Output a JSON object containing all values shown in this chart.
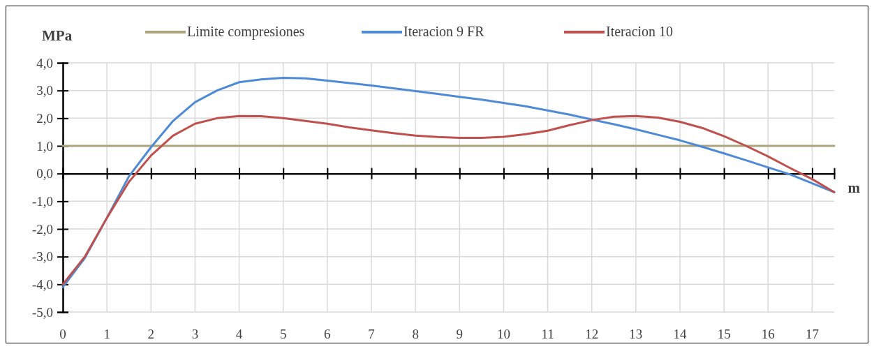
{
  "chart_data": {
    "type": "line",
    "xlabel": "m",
    "ylabel": "MPa",
    "xlim": [
      0,
      17.5
    ],
    "ylim": [
      -5,
      4
    ],
    "xticks": [
      0,
      1,
      2,
      3,
      4,
      5,
      6,
      7,
      8,
      9,
      10,
      11,
      12,
      13,
      14,
      15,
      16,
      17
    ],
    "yticks": [
      {
        "value": -5,
        "label": "-5,0"
      },
      {
        "value": -4,
        "label": "-4,0"
      },
      {
        "value": -3,
        "label": "-3,0"
      },
      {
        "value": -2,
        "label": "-2,0"
      },
      {
        "value": -1,
        "label": "-1,0"
      },
      {
        "value": 0,
        "label": "0,0"
      },
      {
        "value": 1,
        "label": "1,0"
      },
      {
        "value": 2,
        "label": "2,0"
      },
      {
        "value": 3,
        "label": "3,0"
      },
      {
        "value": 4,
        "label": "4,0"
      }
    ],
    "grid": true,
    "legend": "top",
    "marker": "none",
    "line_style": "solid",
    "series": [
      {
        "name": "Limite compresiones",
        "color": "#aca47c",
        "x": [
          0,
          17.5
        ],
        "values": [
          1,
          1
        ]
      },
      {
        "name": "Iteracion 9 FR",
        "color": "#4f8ad6",
        "x": [
          0,
          0.5,
          1,
          1.5,
          2,
          2.5,
          3,
          3.5,
          4,
          4.5,
          5,
          5.5,
          6,
          6.5,
          7,
          7.5,
          8,
          8.5,
          9,
          9.5,
          10,
          10.5,
          11,
          11.5,
          12,
          12.5,
          13,
          13.5,
          14,
          14.5,
          15,
          15.5,
          16,
          16.5,
          17,
          17.5
        ],
        "values": [
          -4.1,
          -3.05,
          -1.6,
          -0.1,
          0.95,
          1.9,
          2.58,
          3.0,
          3.3,
          3.4,
          3.46,
          3.44,
          3.36,
          3.27,
          3.18,
          3.08,
          2.98,
          2.88,
          2.77,
          2.67,
          2.55,
          2.43,
          2.28,
          2.13,
          1.95,
          1.78,
          1.6,
          1.4,
          1.2,
          0.97,
          0.73,
          0.48,
          0.22,
          -0.03,
          -0.35,
          -0.67
        ]
      },
      {
        "name": "Iteracion 10",
        "color": "#c0504d",
        "x": [
          0,
          0.5,
          1,
          1.5,
          2,
          2.5,
          3,
          3.5,
          4,
          4.5,
          5,
          5.5,
          6,
          6.5,
          7,
          7.5,
          8,
          8.5,
          9,
          9.5,
          10,
          10.5,
          11,
          11.5,
          12,
          12.5,
          13,
          13.5,
          14,
          14.5,
          15,
          15.5,
          16,
          16.5,
          17,
          17.5
        ],
        "values": [
          -4.0,
          -3.0,
          -1.6,
          -0.3,
          0.65,
          1.37,
          1.8,
          2.0,
          2.08,
          2.07,
          2.0,
          1.9,
          1.8,
          1.67,
          1.56,
          1.46,
          1.37,
          1.32,
          1.29,
          1.29,
          1.33,
          1.42,
          1.55,
          1.75,
          1.93,
          2.05,
          2.08,
          2.02,
          1.87,
          1.65,
          1.35,
          1.0,
          0.62,
          0.2,
          -0.2,
          -0.67
        ]
      }
    ]
  }
}
